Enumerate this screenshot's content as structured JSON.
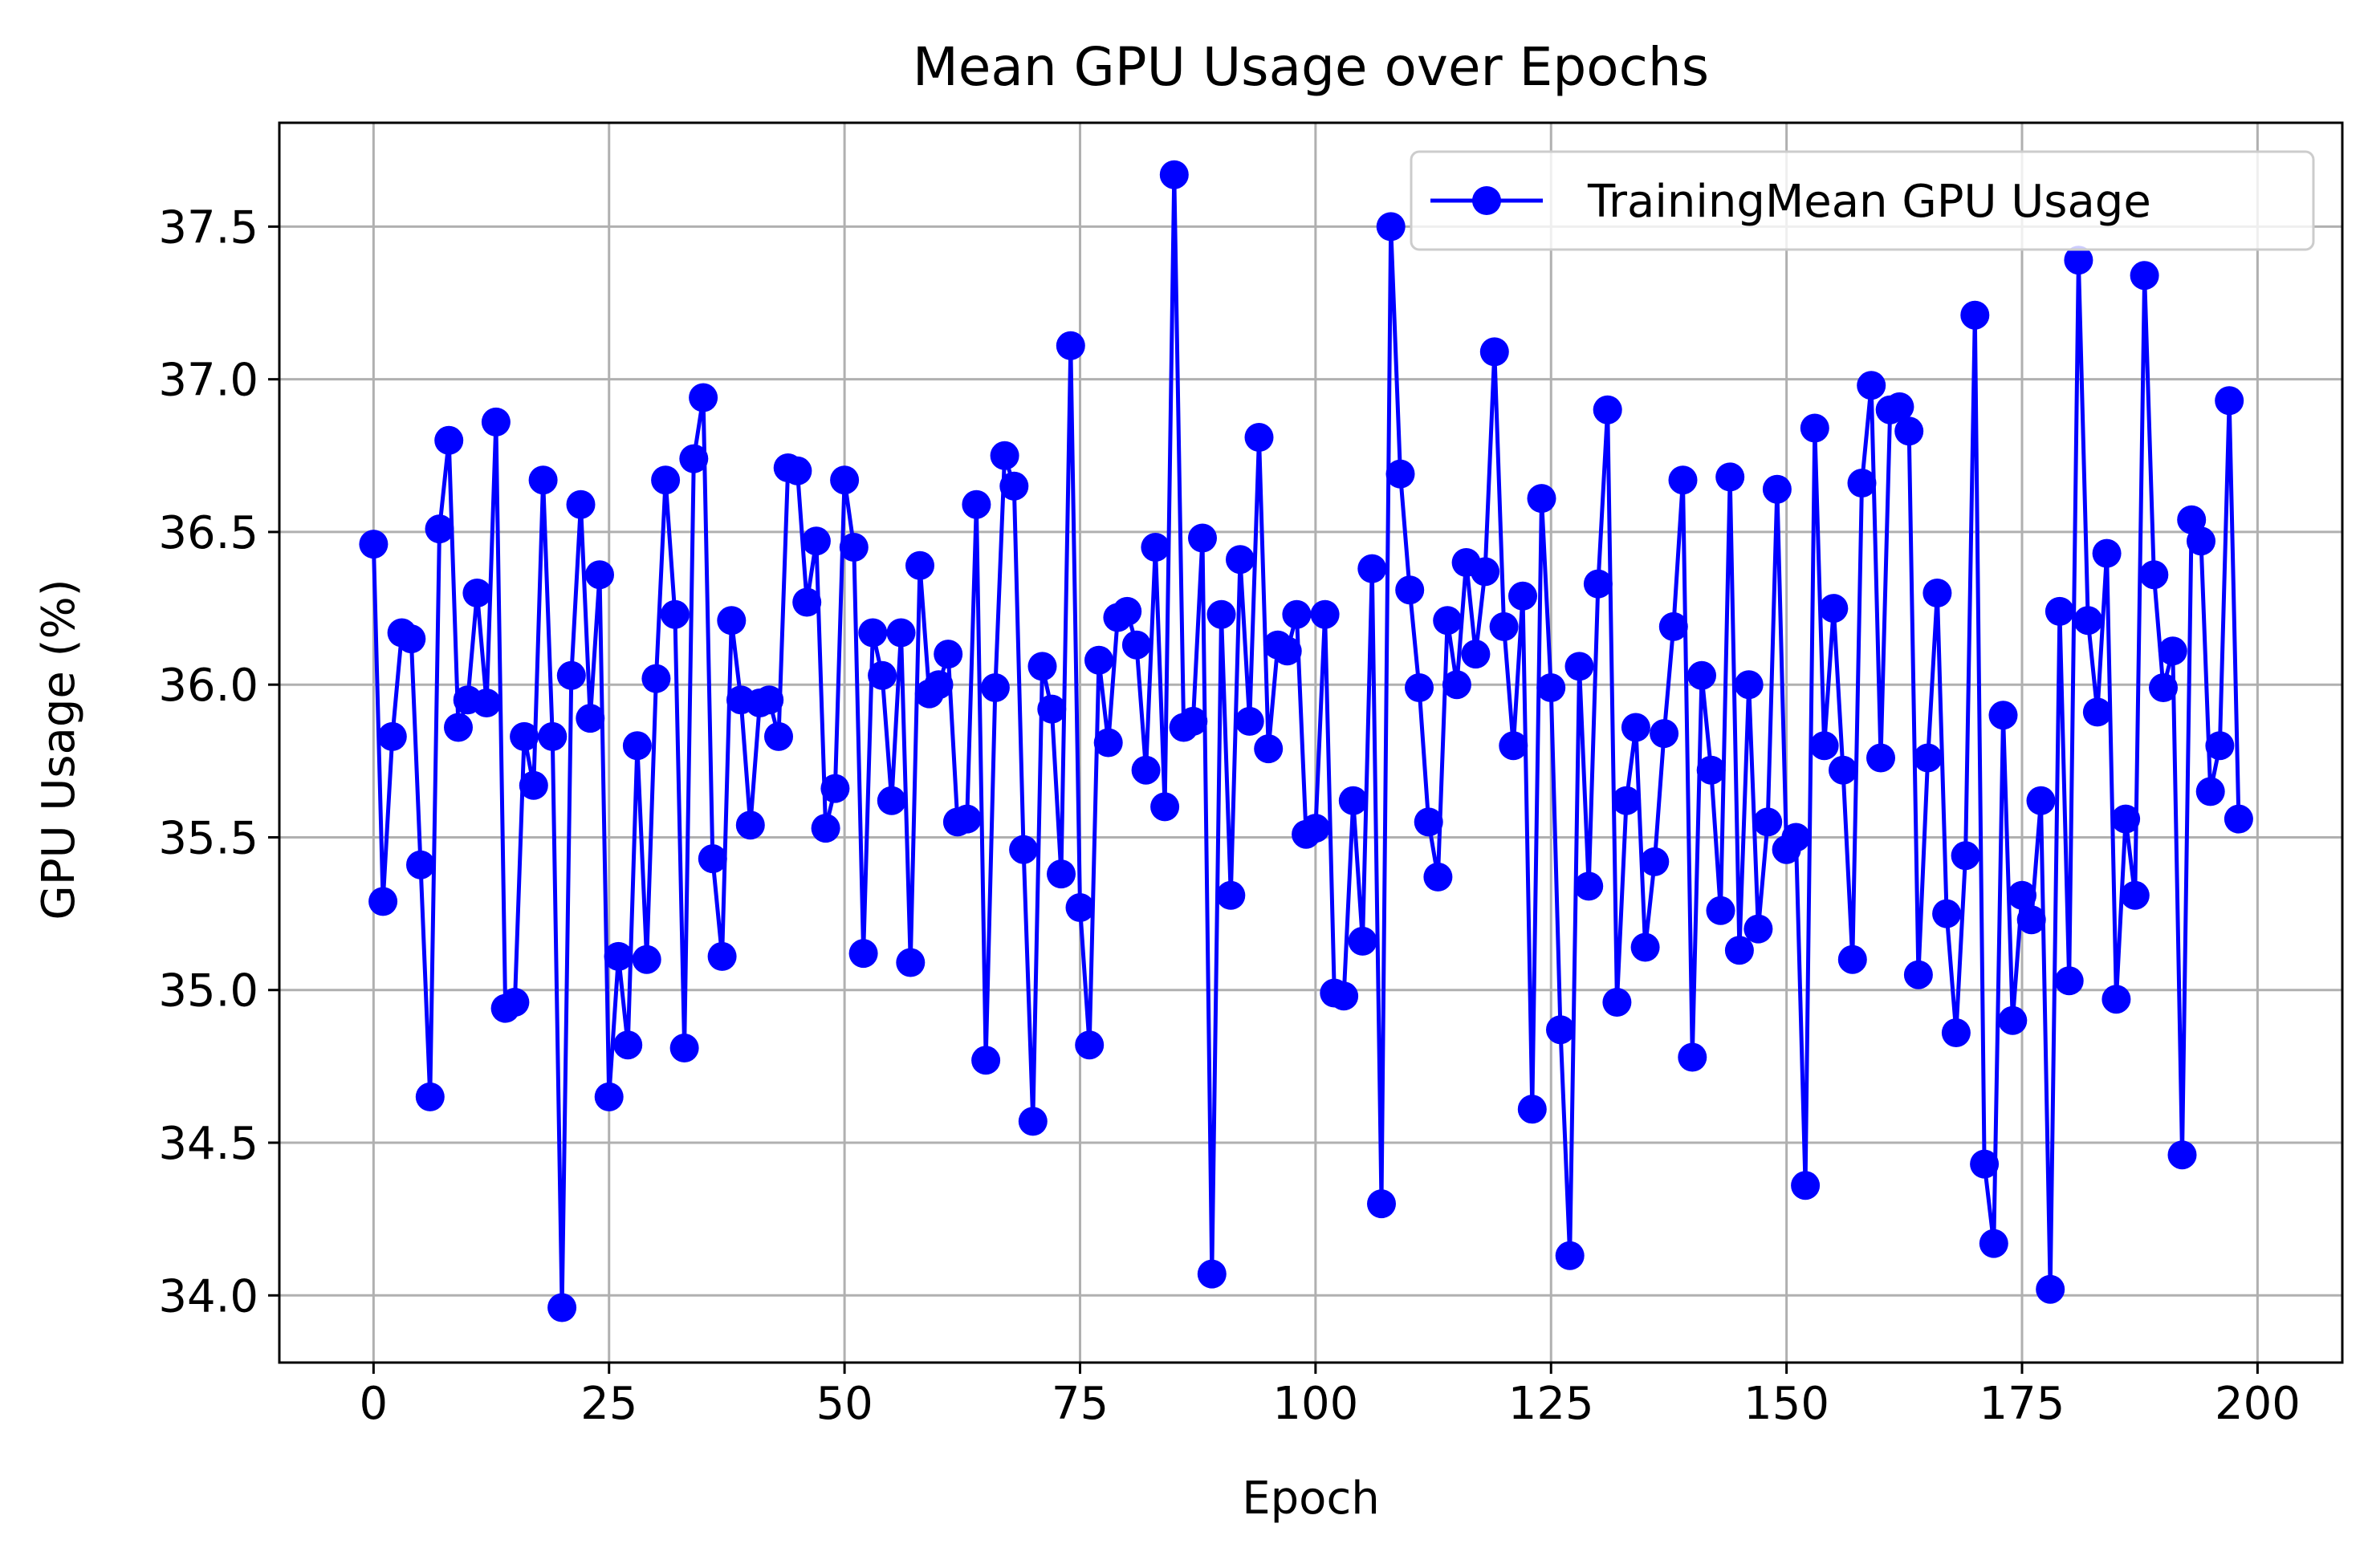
{
  "chart_data": {
    "type": "line",
    "title": "Mean GPU Usage over Epochs",
    "xlabel": "Epoch",
    "ylabel": "GPU Usage (%)",
    "xlim": [
      -10,
      209
    ],
    "ylim": [
      33.78,
      37.84
    ],
    "xticks": [
      0,
      25,
      50,
      75,
      100,
      125,
      150,
      175,
      200
    ],
    "yticks": [
      34.0,
      34.5,
      35.0,
      35.5,
      36.0,
      36.5,
      37.0,
      37.5
    ],
    "xtick_labels": [
      "0",
      "25",
      "50",
      "75",
      "100",
      "125",
      "150",
      "175",
      "200"
    ],
    "ytick_labels": [
      "34.0",
      "34.5",
      "35.0",
      "35.5",
      "36.0",
      "36.5",
      "37.0",
      "37.5"
    ],
    "grid": true,
    "legend_position": "top-right",
    "series": [
      {
        "name": "TrainingMean GPU Usage",
        "color": "#0000ff",
        "marker": "circle",
        "x_start": 0,
        "x_step": 1,
        "values": [
          36.46,
          35.29,
          35.83,
          36.17,
          36.15,
          35.41,
          34.65,
          36.51,
          36.8,
          35.86,
          35.95,
          36.3,
          35.94,
          36.86,
          34.94,
          34.96,
          35.83,
          35.67,
          36.67,
          35.83,
          33.96,
          36.03,
          36.59,
          35.89,
          36.36,
          34.65,
          35.11,
          34.82,
          35.8,
          35.1,
          36.02,
          36.67,
          36.23,
          34.81,
          36.74,
          36.94,
          35.43,
          35.11,
          36.21,
          35.95,
          35.54,
          35.94,
          35.95,
          35.83,
          36.71,
          36.7,
          36.27,
          36.47,
          35.53,
          35.66,
          36.67,
          36.45,
          35.12,
          36.17,
          36.03,
          35.62,
          36.17,
          35.09,
          36.39,
          35.97,
          36.0,
          36.1,
          35.55,
          35.56,
          36.59,
          34.77,
          35.99,
          36.75,
          36.65,
          35.46,
          34.57,
          36.06,
          35.92,
          35.38,
          37.11,
          35.27,
          34.82,
          36.08,
          35.81,
          36.22,
          36.24,
          36.13,
          35.72,
          36.45,
          35.6,
          37.67,
          35.86,
          35.88,
          36.48,
          34.07,
          36.23,
          35.31,
          36.41,
          35.88,
          36.81,
          35.79,
          36.13,
          36.11,
          36.23,
          35.51,
          35.53,
          36.23,
          34.99,
          34.98,
          35.62,
          35.16,
          36.38,
          34.3,
          37.5,
          36.69,
          36.31,
          35.99,
          35.55,
          35.37,
          36.21,
          36.0,
          36.4,
          36.1,
          36.37,
          37.09,
          36.19,
          35.8,
          36.29,
          34.61,
          36.61,
          35.99,
          34.87,
          34.13,
          36.06,
          35.34,
          36.33,
          36.9,
          34.96,
          35.62,
          35.86,
          35.14,
          35.42,
          35.84,
          36.19,
          36.67,
          34.78,
          36.03,
          35.72,
          35.26,
          36.68,
          35.13,
          36.0,
          35.2,
          35.55,
          36.64,
          35.46,
          35.5,
          34.36,
          36.84,
          35.8,
          36.25,
          35.72,
          35.1,
          36.66,
          36.98,
          35.76,
          36.9,
          36.91,
          36.83,
          35.05,
          35.76,
          36.3,
          35.25,
          34.86,
          35.44,
          37.21,
          34.43,
          34.17,
          35.9,
          34.9,
          35.31,
          35.23,
          35.62,
          34.02,
          36.24,
          35.03,
          37.39,
          36.21,
          35.91,
          36.43,
          34.97,
          35.56,
          35.31,
          37.34,
          36.36,
          35.99,
          36.11,
          34.46,
          36.54,
          36.47,
          35.65,
          35.8,
          36.93,
          35.56
        ]
      }
    ]
  }
}
